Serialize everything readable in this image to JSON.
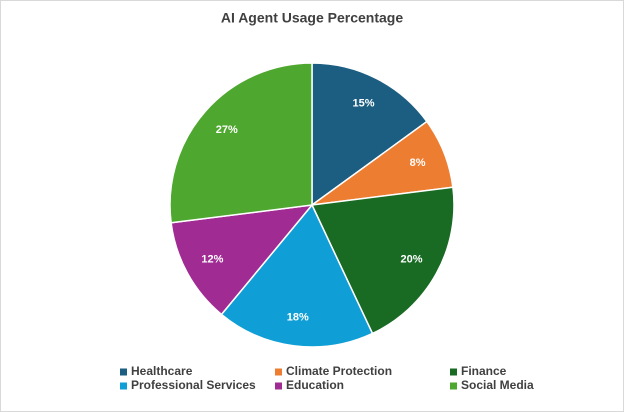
{
  "chart_data": {
    "type": "pie",
    "title": "AI Agent Usage Percentage",
    "categories": [
      "Healthcare",
      "Climate Protection",
      "Finance",
      "Professional Services",
      "Education",
      "Social Media"
    ],
    "values": [
      15,
      8,
      20,
      18,
      12,
      27
    ],
    "value_labels": [
      "15%",
      "8%",
      "20%",
      "18%",
      "12%",
      "27%"
    ],
    "colors": [
      "#1b5e82",
      "#ed7d31",
      "#196b24",
      "#0f9ed5",
      "#a02b93",
      "#4ea72e"
    ],
    "legend": "bottom"
  }
}
